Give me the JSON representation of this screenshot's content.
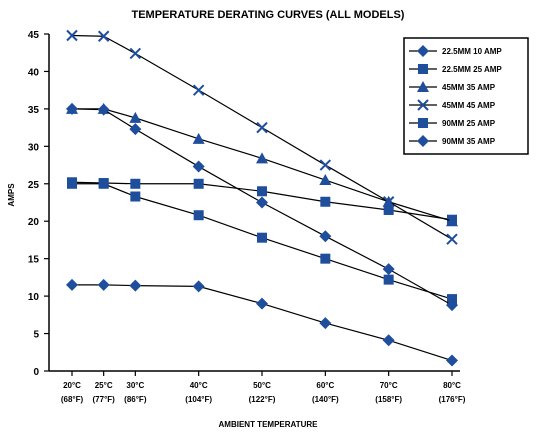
{
  "chart_data": {
    "type": "line",
    "title": "TEMPERATURE DERATING CURVES (ALL MODELS)",
    "xlabel": "AMBIENT TEMPERATURE",
    "ylabel": "AMPS",
    "ylim": [
      0,
      45
    ],
    "yticks": [
      0,
      5,
      10,
      15,
      20,
      25,
      30,
      35,
      40,
      45
    ],
    "categories": [
      {
        "c": "20°C",
        "f": "(68°F)"
      },
      {
        "c": "25°C",
        "f": "(77°F)"
      },
      {
        "c": "30°C",
        "f": "(86°F)"
      },
      {
        "c": "40°C",
        "f": "(104°F)"
      },
      {
        "c": "50°C",
        "f": "(122°F)"
      },
      {
        "c": "60°C",
        "f": "(140°F)"
      },
      {
        "c": "70°C",
        "f": "(158°F)"
      },
      {
        "c": "80°C",
        "f": "(176°F)"
      }
    ],
    "x_positions": [
      20,
      25,
      30,
      40,
      50,
      60,
      70,
      80
    ],
    "grid": false,
    "legend_position": "top-right",
    "series": [
      {
        "name": "22.5MM 10 AMP",
        "marker": "diamond",
        "x": [
          20,
          25,
          30,
          40,
          50,
          60,
          70,
          80
        ],
        "values": [
          11.5,
          11.5,
          11.4,
          11.3,
          9.0,
          6.4,
          4.1,
          1.4
        ]
      },
      {
        "name": "22.5MM 25 AMP",
        "marker": "square",
        "x": [
          20,
          25,
          30,
          40,
          50,
          60,
          70,
          80
        ],
        "values": [
          25.2,
          25.1,
          25.0,
          25.0,
          24.0,
          22.6,
          21.5,
          20.2
        ]
      },
      {
        "name": "45MM 35 AMP",
        "marker": "triangle",
        "x": [
          20,
          25,
          30,
          40,
          50,
          60,
          70,
          80
        ],
        "values": [
          35.0,
          35.0,
          33.8,
          31.0,
          28.4,
          25.5,
          22.6,
          20.0
        ]
      },
      {
        "name": "45MM 45 AMP",
        "marker": "x",
        "x": [
          20,
          25,
          30,
          40,
          50,
          60,
          70,
          80
        ],
        "values": [
          44.8,
          44.7,
          42.4,
          37.5,
          32.5,
          27.5,
          22.6,
          17.6
        ]
      },
      {
        "name": "90MM 25 AMP",
        "marker": "square",
        "x": [
          20,
          25,
          30,
          40,
          50,
          60,
          70,
          80
        ],
        "values": [
          25.0,
          25.0,
          23.3,
          20.8,
          17.8,
          15.0,
          12.2,
          9.6
        ]
      },
      {
        "name": "90MM 35 AMP",
        "marker": "diamond",
        "x": [
          20,
          25,
          30,
          40,
          50,
          60,
          70,
          80
        ],
        "values": [
          35.0,
          34.9,
          32.3,
          27.3,
          22.5,
          18.0,
          13.6,
          8.8
        ]
      }
    ],
    "colors": {
      "line": "#000000",
      "marker": "#1f4e9c"
    }
  }
}
